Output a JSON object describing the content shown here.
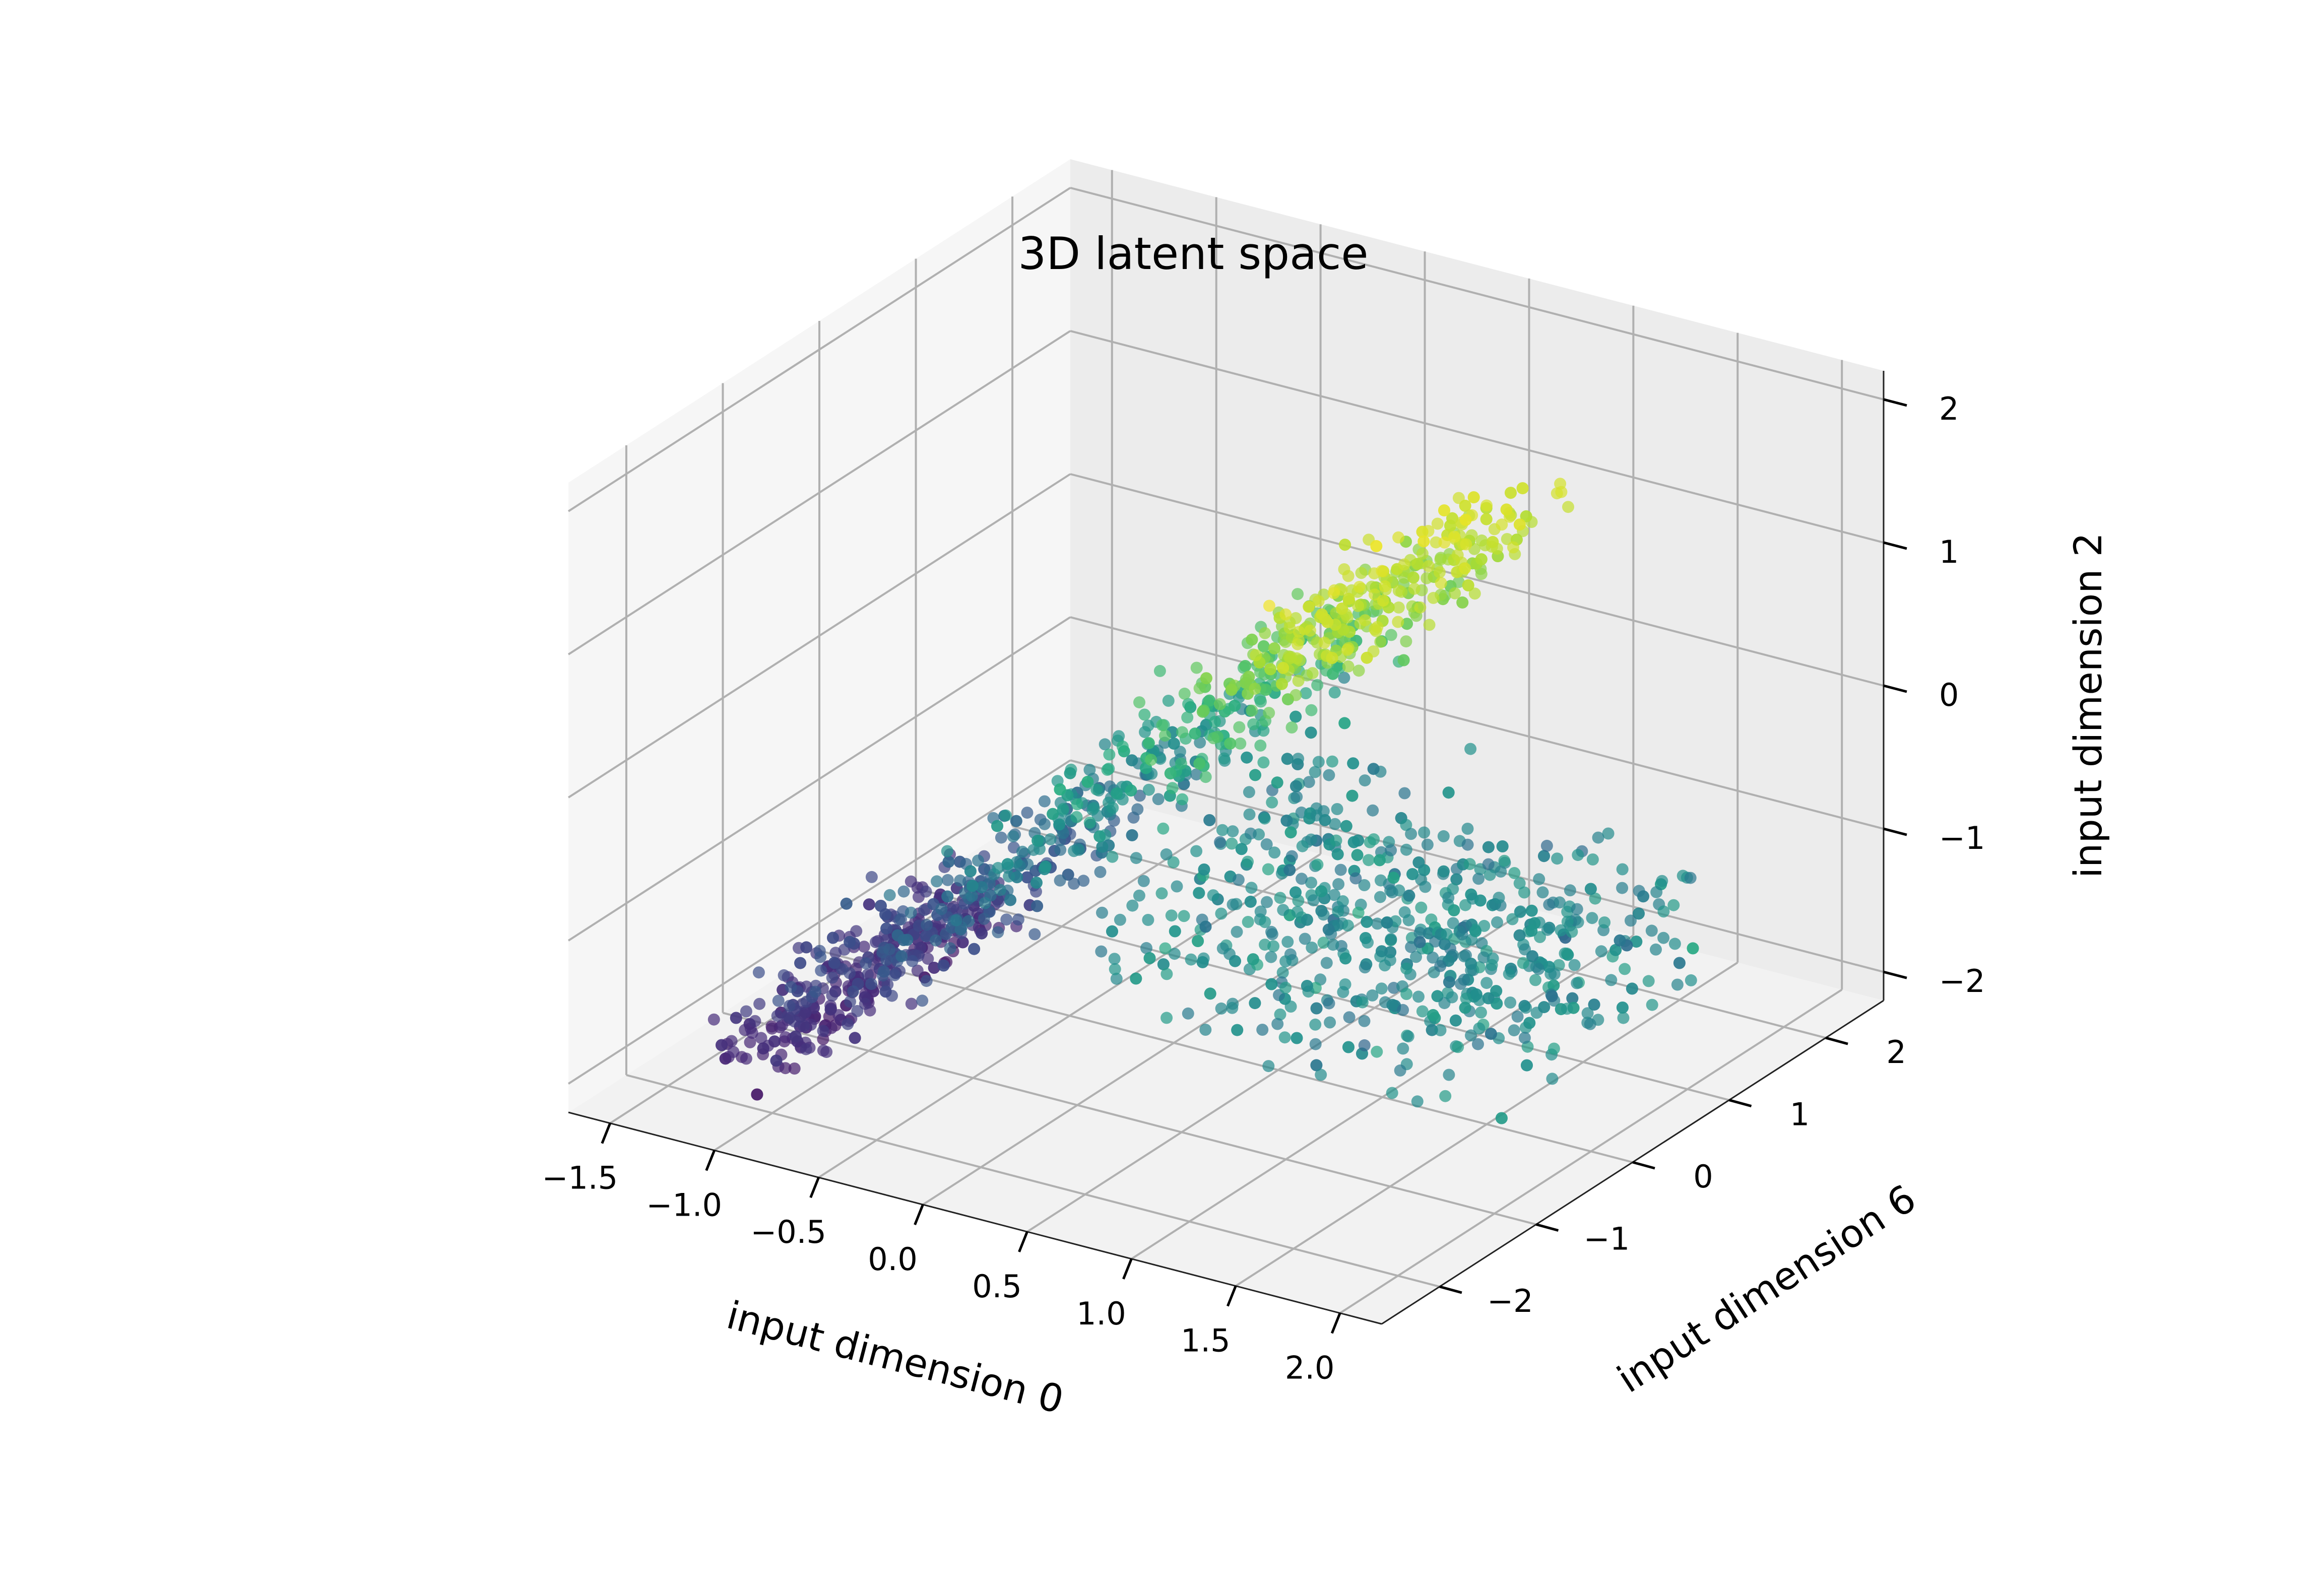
{
  "chart_data": {
    "type": "scatter",
    "subtype": "3d",
    "title": "3D latent space",
    "xlabel": "input dimension 0",
    "ylabel": "input dimension 6",
    "zlabel": "input dimension 2",
    "xlim": [
      -1.7,
      2.2
    ],
    "ylim": [
      -2.6,
      2.6
    ],
    "zlim": [
      -2.2,
      2.2
    ],
    "xticks": [
      -1.5,
      -1.0,
      -0.5,
      0.0,
      0.5,
      1.0,
      1.5,
      2.0
    ],
    "xtick_labels": [
      "−1.5",
      "−1.0",
      "−0.5",
      "0.0",
      "0.5",
      "1.0",
      "1.5",
      "2.0"
    ],
    "yticks": [
      -2,
      -1,
      0,
      1,
      2
    ],
    "ytick_labels": [
      "−2",
      "−1",
      "0",
      "1",
      "2"
    ],
    "zticks": [
      -2,
      -1,
      0,
      1,
      2
    ],
    "ztick_labels": [
      "−2",
      "−1",
      "0",
      "1",
      "2"
    ],
    "grid": true,
    "colormap": "viridis",
    "color_by": "input dimension 2",
    "marker_alpha": 0.7,
    "pane_color": "#f2f2f2",
    "grid_color": "#b0b0b0",
    "description": "Swiss-roll / S-curve shaped manifold sampled with about 2000 points",
    "point_count_estimate": 2000
  }
}
